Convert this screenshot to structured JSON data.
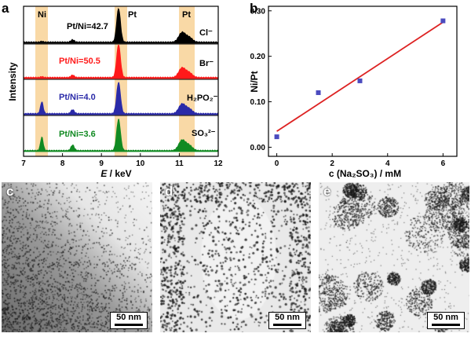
{
  "panels": {
    "a": "a",
    "b": "b",
    "c": "c",
    "d": "d",
    "e": "e"
  },
  "panel_a": {
    "ylabel": "Intensity",
    "xlabel_italic": "E",
    "xlabel_rest": " / keV",
    "xticks": [
      "7",
      "8",
      "9",
      "10",
      "11",
      "12"
    ],
    "peak_labels": [
      "Ni",
      "Pt",
      "Pt"
    ],
    "traces": [
      {
        "ratio": "Pt/Ni=42.7",
        "anion": "Cl⁻",
        "color": "#000000"
      },
      {
        "ratio": "Pt/Ni=50.5",
        "anion": "Br⁻",
        "color": "#ff1a1a"
      },
      {
        "ratio": "Pt/Ni=4.0",
        "anion": "H₂PO₂⁻",
        "color": "#2a2aa8"
      },
      {
        "ratio": "Pt/Ni=3.6",
        "anion": "SO₃²⁻",
        "color": "#118a22"
      }
    ],
    "band_color": "#f9d9a6"
  },
  "chart_data": {
    "type": "scatter",
    "title": "",
    "xlabel": "c (Na₂SO₃) / mM",
    "ylabel": "Ni/Pt",
    "xlim": [
      -0.3,
      6.5
    ],
    "ylim": [
      -0.02,
      0.31
    ],
    "xticks": [
      0,
      2,
      4,
      6
    ],
    "yticks": [
      "0.00",
      "0.10",
      "0.20",
      "0.30"
    ],
    "x": [
      0,
      1.5,
      3,
      6
    ],
    "y": [
      0.023,
      0.12,
      0.146,
      0.278
    ],
    "fit_line": {
      "x": [
        0,
        6
      ],
      "y": [
        0.035,
        0.275
      ]
    },
    "marker_color": "#4b4bbf",
    "line_color": "#dd2222"
  },
  "scale_bars": {
    "c": "50 nm",
    "d": "50 nm",
    "e": "50 nm"
  }
}
